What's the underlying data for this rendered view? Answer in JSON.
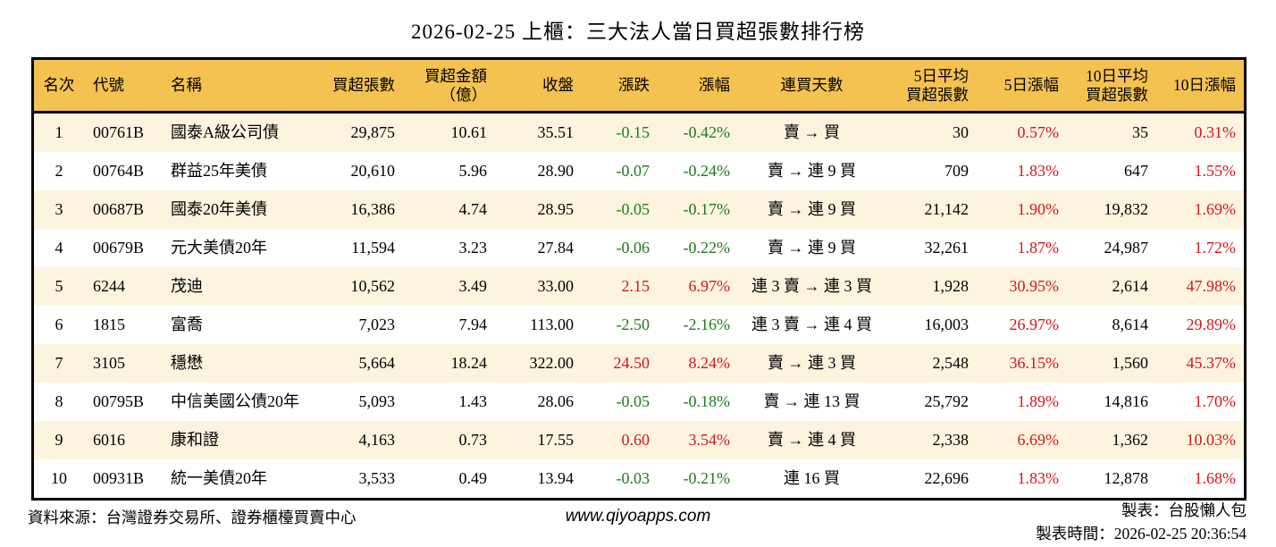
{
  "title": "2026-02-25 上櫃：三大法人當日買超張數排行榜",
  "colors": {
    "up": "#d8141e",
    "down": "#1a7d1a",
    "header_bg": "#f4c250",
    "row_alt": "#fcf4df",
    "border": "#000000"
  },
  "table": {
    "columns": [
      {
        "key": "rank",
        "label": "名次",
        "align": "center"
      },
      {
        "key": "code",
        "label": "代號",
        "align": "left"
      },
      {
        "key": "name",
        "label": "名稱",
        "align": "left"
      },
      {
        "key": "net-buy",
        "label": "買超張數",
        "align": "right"
      },
      {
        "key": "amount",
        "label": "買超金額\n（億）",
        "align": "right"
      },
      {
        "key": "close",
        "label": "收盤",
        "align": "right"
      },
      {
        "key": "change",
        "label": "漲跌",
        "align": "right",
        "signed": true
      },
      {
        "key": "change-pct",
        "label": "漲幅",
        "align": "right",
        "signed": true
      },
      {
        "key": "streak",
        "label": "連買天數",
        "align": "center"
      },
      {
        "key": "avg5",
        "label": "5日平均\n買超張數",
        "align": "right"
      },
      {
        "key": "pct5",
        "label": "5日漲幅",
        "align": "right",
        "signed": true
      },
      {
        "key": "avg10",
        "label": "10日平均\n買超張數",
        "align": "right"
      },
      {
        "key": "pct10",
        "label": "10日漲幅",
        "align": "right",
        "signed": true
      }
    ],
    "rows": [
      [
        "1",
        "00761B",
        "國泰A級公司債",
        "29,875",
        "10.61",
        "35.51",
        "-0.15",
        "-0.42%",
        "賣 → 買",
        "30",
        "0.57%",
        "35",
        "0.31%"
      ],
      [
        "2",
        "00764B",
        "群益25年美債",
        "20,610",
        "5.96",
        "28.90",
        "-0.07",
        "-0.24%",
        "賣 → 連 9 買",
        "709",
        "1.83%",
        "647",
        "1.55%"
      ],
      [
        "3",
        "00687B",
        "國泰20年美債",
        "16,386",
        "4.74",
        "28.95",
        "-0.05",
        "-0.17%",
        "賣 → 連 9 買",
        "21,142",
        "1.90%",
        "19,832",
        "1.69%"
      ],
      [
        "4",
        "00679B",
        "元大美債20年",
        "11,594",
        "3.23",
        "27.84",
        "-0.06",
        "-0.22%",
        "賣 → 連 9 買",
        "32,261",
        "1.87%",
        "24,987",
        "1.72%"
      ],
      [
        "5",
        "6244",
        "茂迪",
        "10,562",
        "3.49",
        "33.00",
        "2.15",
        "6.97%",
        "連 3 賣 → 連 3 買",
        "1,928",
        "30.95%",
        "2,614",
        "47.98%"
      ],
      [
        "6",
        "1815",
        "富喬",
        "7,023",
        "7.94",
        "113.00",
        "-2.50",
        "-2.16%",
        "連 3 賣 → 連 4 買",
        "16,003",
        "26.97%",
        "8,614",
        "29.89%"
      ],
      [
        "7",
        "3105",
        "穩懋",
        "5,664",
        "18.24",
        "322.00",
        "24.50",
        "8.24%",
        "賣 → 連 3 買",
        "2,548",
        "36.15%",
        "1,560",
        "45.37%"
      ],
      [
        "8",
        "00795B",
        "中信美國公債20年",
        "5,093",
        "1.43",
        "28.06",
        "-0.05",
        "-0.18%",
        "賣 → 連 13 買",
        "25,792",
        "1.89%",
        "14,816",
        "1.70%"
      ],
      [
        "9",
        "6016",
        "康和證",
        "4,163",
        "0.73",
        "17.55",
        "0.60",
        "3.54%",
        "賣 → 連 4 買",
        "2,338",
        "6.69%",
        "1,362",
        "10.03%"
      ],
      [
        "10",
        "00931B",
        "統一美債20年",
        "3,533",
        "0.49",
        "13.94",
        "-0.03",
        "-0.21%",
        "連 16 買",
        "22,696",
        "1.83%",
        "12,878",
        "1.68%"
      ]
    ]
  },
  "footer": {
    "source": "資料來源：台灣證券交易所、證券櫃檯買賣中心",
    "url": "www.qiyoapps.com",
    "maker": "製表：台股懶人包",
    "time": "製表時間：2026-02-25 20:36:54"
  }
}
